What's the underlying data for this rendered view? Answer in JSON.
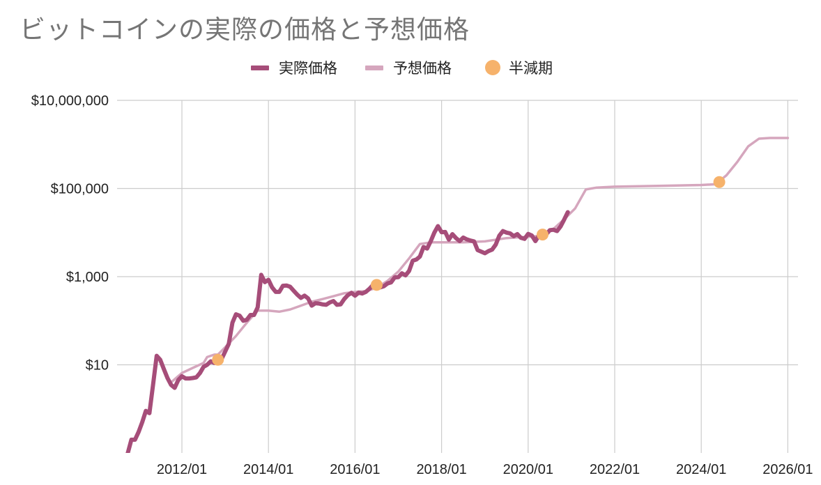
{
  "chart_data": {
    "type": "line",
    "title": "ビットコインの実際の価格と予想価格",
    "y_scale": "log",
    "ylim": [
      0.1,
      10000000
    ],
    "y_ticks": [
      {
        "value": 10,
        "label": "$10"
      },
      {
        "value": 1000,
        "label": "$1,000"
      },
      {
        "value": 100000,
        "label": "$100,000"
      },
      {
        "value": 10000000,
        "label": "$10,000,000"
      }
    ],
    "x_ticks": [
      "2012/01",
      "2014/01",
      "2016/01",
      "2018/01",
      "2020/01",
      "2022/01",
      "2024/01",
      "2026/01"
    ],
    "legend_position": "top",
    "gridlines": true,
    "series": [
      {
        "name": "実際価格",
        "color": "#a64d79",
        "points": [
          [
            "2010/09",
            0.06
          ],
          [
            "2010/10",
            0.1
          ],
          [
            "2010/11",
            0.2
          ],
          [
            "2010/12",
            0.2
          ],
          [
            "2011/01",
            0.3
          ],
          [
            "2011/02",
            0.5
          ],
          [
            "2011/03",
            0.9
          ],
          [
            "2011/04",
            0.8
          ],
          [
            "2011/05",
            3.5
          ],
          [
            "2011/06",
            16
          ],
          [
            "2011/07",
            13
          ],
          [
            "2011/08",
            8
          ],
          [
            "2011/09",
            5
          ],
          [
            "2011/10",
            3.5
          ],
          [
            "2011/11",
            3
          ],
          [
            "2011/12",
            4.5
          ],
          [
            "2012/01",
            5.5
          ],
          [
            "2012/02",
            4.9
          ],
          [
            "2012/03",
            4.9
          ],
          [
            "2012/04",
            5
          ],
          [
            "2012/05",
            5.2
          ],
          [
            "2012/06",
            6.5
          ],
          [
            "2012/07",
            9
          ],
          [
            "2012/08",
            10
          ],
          [
            "2012/09",
            12
          ],
          [
            "2012/10",
            11
          ],
          [
            "2012/11",
            12
          ],
          [
            "2012/12",
            13.5
          ],
          [
            "2013/01",
            20
          ],
          [
            "2013/02",
            30
          ],
          [
            "2013/03",
            90
          ],
          [
            "2013/04",
            140
          ],
          [
            "2013/05",
            130
          ],
          [
            "2013/06",
            100
          ],
          [
            "2013/07",
            105
          ],
          [
            "2013/08",
            135
          ],
          [
            "2013/09",
            135
          ],
          [
            "2013/10",
            200
          ],
          [
            "2013/11",
            1100
          ],
          [
            "2013/12",
            750
          ],
          [
            "2014/01",
            850
          ],
          [
            "2014/02",
            570
          ],
          [
            "2014/03",
            450
          ],
          [
            "2014/04",
            450
          ],
          [
            "2014/05",
            620
          ],
          [
            "2014/06",
            630
          ],
          [
            "2014/07",
            590
          ],
          [
            "2014/08",
            480
          ],
          [
            "2014/09",
            390
          ],
          [
            "2014/10",
            330
          ],
          [
            "2014/11",
            370
          ],
          [
            "2014/12",
            320
          ],
          [
            "2015/01",
            220
          ],
          [
            "2015/02",
            250
          ],
          [
            "2015/03",
            245
          ],
          [
            "2015/04",
            235
          ],
          [
            "2015/05",
            230
          ],
          [
            "2015/06",
            260
          ],
          [
            "2015/07",
            280
          ],
          [
            "2015/08",
            230
          ],
          [
            "2015/09",
            235
          ],
          [
            "2015/10",
            310
          ],
          [
            "2015/11",
            380
          ],
          [
            "2015/12",
            430
          ],
          [
            "2016/01",
            370
          ],
          [
            "2016/02",
            435
          ],
          [
            "2016/03",
            415
          ],
          [
            "2016/04",
            450
          ],
          [
            "2016/05",
            530
          ],
          [
            "2016/06",
            650
          ],
          [
            "2016/07",
            620
          ],
          [
            "2016/08",
            570
          ],
          [
            "2016/09",
            605
          ],
          [
            "2016/10",
            700
          ],
          [
            "2016/11",
            740
          ],
          [
            "2016/12",
            960
          ],
          [
            "2017/01",
            970
          ],
          [
            "2017/02",
            1190
          ],
          [
            "2017/03",
            1070
          ],
          [
            "2017/04",
            1350
          ],
          [
            "2017/05",
            2300
          ],
          [
            "2017/06",
            2450
          ],
          [
            "2017/07",
            2850
          ],
          [
            "2017/08",
            4700
          ],
          [
            "2017/09",
            4340
          ],
          [
            "2017/10",
            6400
          ],
          [
            "2017/11",
            10000
          ],
          [
            "2017/12",
            14000
          ],
          [
            "2018/01",
            10200
          ],
          [
            "2018/02",
            10300
          ],
          [
            "2018/03",
            6900
          ],
          [
            "2018/04",
            9200
          ],
          [
            "2018/05",
            7500
          ],
          [
            "2018/06",
            6400
          ],
          [
            "2018/07",
            7700
          ],
          [
            "2018/08",
            7000
          ],
          [
            "2018/09",
            6600
          ],
          [
            "2018/10",
            6300
          ],
          [
            "2018/11",
            4000
          ],
          [
            "2018/12",
            3700
          ],
          [
            "2019/01",
            3400
          ],
          [
            "2019/02",
            3800
          ],
          [
            "2019/03",
            4100
          ],
          [
            "2019/04",
            5300
          ],
          [
            "2019/05",
            8500
          ],
          [
            "2019/06",
            10800
          ],
          [
            "2019/07",
            10000
          ],
          [
            "2019/08",
            9600
          ],
          [
            "2019/09",
            8300
          ],
          [
            "2019/10",
            9200
          ],
          [
            "2019/11",
            7600
          ],
          [
            "2019/12",
            7200
          ],
          [
            "2020/01",
            9300
          ],
          [
            "2020/02",
            8600
          ],
          [
            "2020/03",
            6400
          ],
          [
            "2020/04",
            8600
          ],
          [
            "2020/05",
            9400
          ],
          [
            "2020/06",
            9100
          ],
          [
            "2020/07",
            11300
          ],
          [
            "2020/08",
            11600
          ],
          [
            "2020/09",
            10800
          ],
          [
            "2020/10",
            13800
          ],
          [
            "2020/11",
            19700
          ],
          [
            "2020/12",
            29000
          ]
        ]
      },
      {
        "name": "予想価格",
        "color": "#d5a6bd",
        "points": [
          [
            "2011/10",
            4
          ],
          [
            "2012/01",
            6.5
          ],
          [
            "2012/04",
            8.5
          ],
          [
            "2012/07",
            11
          ],
          [
            "2012/08",
            15
          ],
          [
            "2012/10",
            17
          ],
          [
            "2012/11",
            17
          ],
          [
            "2013/01",
            25
          ],
          [
            "2013/04",
            45
          ],
          [
            "2013/07",
            90
          ],
          [
            "2013/10",
            170
          ],
          [
            "2014/01",
            170
          ],
          [
            "2014/04",
            160
          ],
          [
            "2014/07",
            180
          ],
          [
            "2014/10",
            220
          ],
          [
            "2015/01",
            270
          ],
          [
            "2015/04",
            310
          ],
          [
            "2015/07",
            360
          ],
          [
            "2015/10",
            420
          ],
          [
            "2016/01",
            450
          ],
          [
            "2016/04",
            470
          ],
          [
            "2016/07",
            560
          ],
          [
            "2016/10",
            800
          ],
          [
            "2017/01",
            1300
          ],
          [
            "2017/04",
            2600
          ],
          [
            "2017/07",
            5500
          ],
          [
            "2017/10",
            6000
          ],
          [
            "2018/01",
            6000
          ],
          [
            "2018/07",
            6000
          ],
          [
            "2019/01",
            6300
          ],
          [
            "2019/07",
            7500
          ],
          [
            "2019/10",
            7800
          ],
          [
            "2020/01",
            8000
          ],
          [
            "2020/05",
            8500
          ],
          [
            "2020/08",
            12000
          ],
          [
            "2020/11",
            20000
          ],
          [
            "2021/02",
            35000
          ],
          [
            "2021/05",
            95000
          ],
          [
            "2021/08",
            105000
          ],
          [
            "2022/01",
            110000
          ],
          [
            "2023/01",
            115000
          ],
          [
            "2024/01",
            120000
          ],
          [
            "2024/05",
            125000
          ],
          [
            "2024/08",
            200000
          ],
          [
            "2024/11",
            400000
          ],
          [
            "2025/02",
            900000
          ],
          [
            "2025/05",
            1350000
          ],
          [
            "2025/08",
            1400000
          ],
          [
            "2026/01",
            1400000
          ]
        ]
      },
      {
        "name": "半減期",
        "color": "#f6b26b",
        "type": "scatter",
        "points": [
          [
            "2012/11",
            13
          ],
          [
            "2016/07",
            650
          ],
          [
            "2020/05",
            9000
          ],
          [
            "2024/06",
            140000
          ]
        ]
      }
    ]
  }
}
